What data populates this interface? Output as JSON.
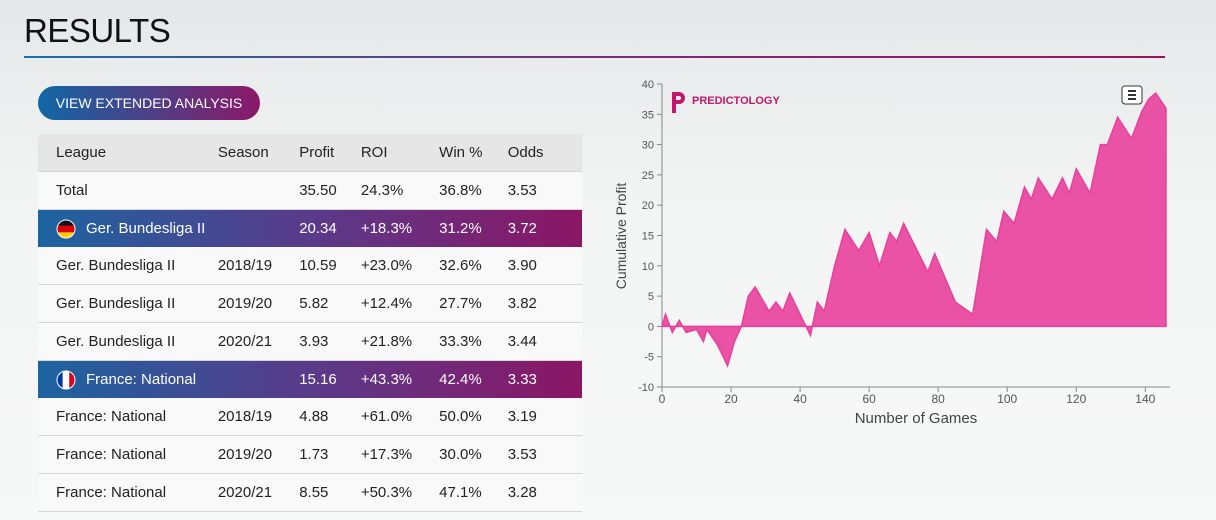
{
  "header": {
    "title": "RESULTS"
  },
  "button": {
    "label": "VIEW EXTENDED ANALYSIS"
  },
  "table": {
    "header": [
      "League",
      "Season",
      "Profit",
      "ROI",
      "Win %",
      "Odds"
    ],
    "rows": [
      {
        "league": "Total",
        "profit": "35.50",
        "roi": "24.3%",
        "win": "36.8%",
        "odds": "3.53"
      },
      {
        "league": "Ger. Bundesliga II",
        "profit": "20.34",
        "roi": "+18.3%",
        "win": "31.2%",
        "odds": "3.72",
        "group": true,
        "flag": "de"
      },
      {
        "league": "Ger. Bundesliga II",
        "season": "2018/19",
        "profit": "10.59",
        "roi": "+23.0%",
        "win": "32.6%",
        "odds": "3.90"
      },
      {
        "league": "Ger. Bundesliga II",
        "season": "2019/20",
        "profit": "5.82",
        "roi": "+12.4%",
        "win": "27.7%",
        "odds": "3.82"
      },
      {
        "league": "Ger. Bundesliga II",
        "season": "2020/21",
        "profit": "3.93",
        "roi": "+21.8%",
        "win": "33.3%",
        "odds": "3.44"
      },
      {
        "league": "France: National",
        "profit": "15.16",
        "roi": "+43.3%",
        "win": "42.4%",
        "odds": "3.33",
        "group": true,
        "flag": "fr"
      },
      {
        "league": "France: National",
        "season": "2018/19",
        "profit": "4.88",
        "roi": "+61.0%",
        "win": "50.0%",
        "odds": "3.19"
      },
      {
        "league": "France: National",
        "season": "2019/20",
        "profit": "1.73",
        "roi": "+17.3%",
        "win": "30.0%",
        "odds": "3.53"
      },
      {
        "league": "France: National",
        "season": "2020/21",
        "profit": "8.55",
        "roi": "+50.3%",
        "win": "47.1%",
        "odds": "3.28"
      }
    ]
  },
  "chart_data": {
    "type": "area",
    "logo": "PREDICTOLOGY",
    "xlabel": "Number of Games",
    "ylabel": "Cumulative Profit",
    "color": "#e8409c",
    "x": [
      0,
      1,
      3,
      5,
      7,
      10,
      12,
      13,
      16,
      19,
      21,
      23,
      25,
      27,
      31,
      33,
      35,
      37,
      43,
      45,
      47,
      50,
      53,
      57,
      60,
      63,
      66,
      68,
      70,
      77,
      79,
      85,
      90,
      94,
      97,
      99,
      102,
      105,
      107,
      109,
      113,
      116,
      118,
      120,
      124,
      127,
      129,
      132,
      136,
      139,
      141,
      143,
      146
    ],
    "values": [
      0,
      2,
      -1,
      1,
      -1,
      -0.5,
      -2.5,
      -0.5,
      -3,
      -6.5,
      -2.5,
      0,
      5,
      6.5,
      2.5,
      4,
      2.5,
      5.5,
      -1.5,
      4,
      2.5,
      10,
      16,
      12.5,
      15.5,
      10,
      15.5,
      14,
      17,
      9,
      12,
      4,
      2,
      16,
      14,
      19,
      17,
      23,
      21,
      24.5,
      21,
      24.5,
      22,
      26,
      22,
      30,
      30,
      34.5,
      31,
      35.5,
      37.5,
      38.5,
      36
    ],
    "xlim": [
      0,
      146
    ],
    "ylim": [
      -10,
      40
    ],
    "xticks": [
      0,
      20,
      40,
      60,
      80,
      100,
      120,
      140
    ],
    "yticks": [
      -10,
      -5,
      0,
      5,
      10,
      15,
      20,
      25,
      30,
      35,
      40
    ]
  }
}
